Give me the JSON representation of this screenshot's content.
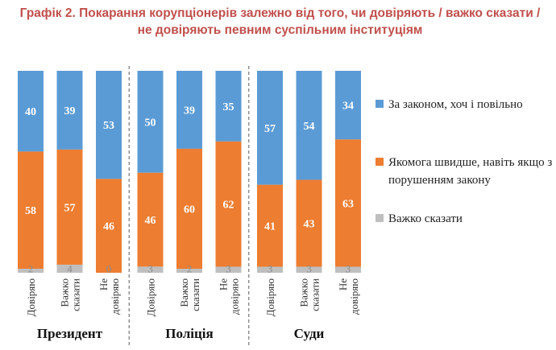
{
  "title": "Графік 2. Покарання корупціонерів залежно від того, чи довіряють / важко сказати / не довіряють певним суспільним інституціям",
  "colors": {
    "blue": "#5b9bd5",
    "orange": "#ed7d31",
    "gray": "#bfbfbf",
    "title": "#c0504d"
  },
  "chart_data": {
    "type": "bar",
    "stacked": true,
    "normalized_percent": true,
    "groups": [
      {
        "name": "Президент",
        "categories": [
          "Довіряю",
          "Важко сказати",
          "Не довіряю"
        ]
      },
      {
        "name": "Поліція",
        "categories": [
          "Довіряю",
          "Важко сказати",
          "Не довіряю"
        ]
      },
      {
        "name": "Суди",
        "categories": [
          "Довіряю",
          "Важко сказати",
          "Не довіряю"
        ]
      }
    ],
    "series": [
      {
        "name": "За законом, хоч і повільно",
        "color": "#5b9bd5",
        "values": [
          40,
          39,
          53,
          50,
          39,
          35,
          57,
          54,
          34
        ]
      },
      {
        "name": "Якомога швидше, навіть якщо з порушенням закону",
        "color": "#ed7d31",
        "values": [
          58,
          57,
          46,
          46,
          60,
          62,
          41,
          43,
          63
        ]
      },
      {
        "name": "Важко сказати",
        "color": "#bfbfbf",
        "values": [
          2,
          4,
          0,
          3,
          2,
          3,
          3,
          3,
          3
        ]
      }
    ],
    "legend_position": "right",
    "grid": false
  }
}
